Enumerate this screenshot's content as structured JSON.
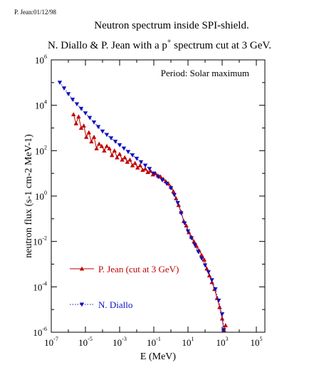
{
  "header": {
    "stamp": "P. Jean:01/12/98",
    "title_line1": "Neutron spectrum inside SPI-shield.",
    "title_line2_pre": "N. Diallo & P. Jean with a p",
    "title_line2_sup": "+",
    "title_line2_post": " spectrum cut at 3 GeV."
  },
  "chart_data": {
    "type": "line",
    "title": "Neutron spectrum inside SPI-shield.",
    "xlabel": "E (MeV)",
    "ylabel": "neutron flux (s-1 cm-2 MeV-1)",
    "xscale": "log",
    "yscale": "log",
    "xlim_exp": [
      -7,
      5.5
    ],
    "ylim_exp": [
      -6,
      6
    ],
    "x_tick_labels": [
      {
        "base": "10",
        "exp": "-7"
      },
      {
        "base": "10",
        "exp": "-5"
      },
      {
        "base": "10",
        "exp": "-3"
      },
      {
        "base": "10",
        "exp": "-1"
      },
      {
        "base": "10",
        "exp": "1"
      },
      {
        "base": "10",
        "exp": "3"
      },
      {
        "base": "10",
        "exp": "5"
      }
    ],
    "x_tick_exps": [
      -7,
      -5,
      -3,
      -1,
      1,
      3,
      5
    ],
    "y_tick_labels": [
      {
        "base": "10",
        "exp": "6"
      },
      {
        "base": "10",
        "exp": "4"
      },
      {
        "base": "10",
        "exp": "2"
      },
      {
        "base": "10",
        "exp": "0"
      },
      {
        "base": "10",
        "exp": "-2"
      },
      {
        "base": "10",
        "exp": "-4"
      },
      {
        "base": "10",
        "exp": "-6"
      }
    ],
    "y_tick_exps": [
      6,
      4,
      2,
      0,
      -2,
      -4,
      -6
    ],
    "annotation": "Period: Solar maximum",
    "legend_placement": "bottom-left",
    "series": [
      {
        "name": "P. Jean (cut at 3 GeV)",
        "color": "#c00000",
        "marker": "triangle-up",
        "line_style": "solid",
        "log10_x": [
          -5.7,
          -5.55,
          -5.4,
          -5.25,
          -5.1,
          -4.95,
          -4.8,
          -4.65,
          -4.5,
          -4.35,
          -4.2,
          -4.05,
          -3.9,
          -3.75,
          -3.6,
          -3.45,
          -3.3,
          -3.15,
          -3.0,
          -2.85,
          -2.7,
          -2.55,
          -2.4,
          -2.25,
          -2.1,
          -1.95,
          -1.8,
          -1.65,
          -1.5,
          -1.35,
          -1.2,
          -1.05,
          -0.9,
          -0.75,
          -0.6,
          -0.45,
          -0.3,
          -0.15,
          0.0,
          0.15,
          0.3,
          0.45,
          0.6,
          0.75,
          0.9,
          1.05,
          1.2,
          1.35,
          1.5,
          1.65,
          1.8,
          1.95,
          2.1,
          2.25,
          2.4,
          2.55,
          2.7,
          2.85,
          3.0,
          3.1,
          3.2
        ],
        "log10_y": [
          3.6,
          3.2,
          3.5,
          3.0,
          3.1,
          2.6,
          2.8,
          2.4,
          2.6,
          2.1,
          2.3,
          2.2,
          2.0,
          2.2,
          2.1,
          1.8,
          2.0,
          1.7,
          1.85,
          1.6,
          1.7,
          1.5,
          1.6,
          1.35,
          1.45,
          1.25,
          1.35,
          1.15,
          1.2,
          1.05,
          1.1,
          0.95,
          1.0,
          0.9,
          0.85,
          0.75,
          0.65,
          0.55,
          0.4,
          0.2,
          -0.1,
          -0.4,
          -0.7,
          -1.1,
          -1.3,
          -1.6,
          -1.8,
          -2.0,
          -2.2,
          -2.4,
          -2.6,
          -2.8,
          -3.2,
          -3.5,
          -3.8,
          -4.1,
          -4.5,
          -4.9,
          -5.4,
          -5.9,
          -5.7
        ]
      },
      {
        "name": "N. Diallo",
        "color": "#1010c0",
        "marker": "triangle-down",
        "line_style": "dotted",
        "log10_x": [
          -6.5,
          -6.25,
          -6.0,
          -5.75,
          -5.5,
          -5.25,
          -5.0,
          -4.75,
          -4.5,
          -4.25,
          -4.0,
          -3.75,
          -3.5,
          -3.25,
          -3.0,
          -2.75,
          -2.5,
          -2.25,
          -2.0,
          -1.75,
          -1.5,
          -1.25,
          -1.0,
          -0.75,
          -0.5,
          -0.25,
          0.0,
          0.2,
          0.4,
          0.6,
          0.8,
          1.0,
          1.2,
          1.4,
          1.6,
          1.8,
          2.0,
          2.2,
          2.4,
          2.6,
          2.8,
          3.0,
          3.1
        ],
        "log10_y": [
          5.0,
          4.75,
          4.5,
          4.25,
          4.05,
          3.85,
          3.65,
          3.45,
          3.25,
          3.05,
          2.85,
          2.7,
          2.55,
          2.4,
          2.25,
          2.1,
          1.95,
          1.8,
          1.65,
          1.5,
          1.35,
          1.2,
          1.0,
          0.85,
          0.7,
          0.55,
          0.35,
          0.05,
          -0.3,
          -0.75,
          -1.2,
          -1.55,
          -1.85,
          -2.15,
          -2.45,
          -2.75,
          -3.05,
          -3.35,
          -3.7,
          -4.1,
          -4.6,
          -5.2,
          -5.9
        ]
      }
    ]
  }
}
